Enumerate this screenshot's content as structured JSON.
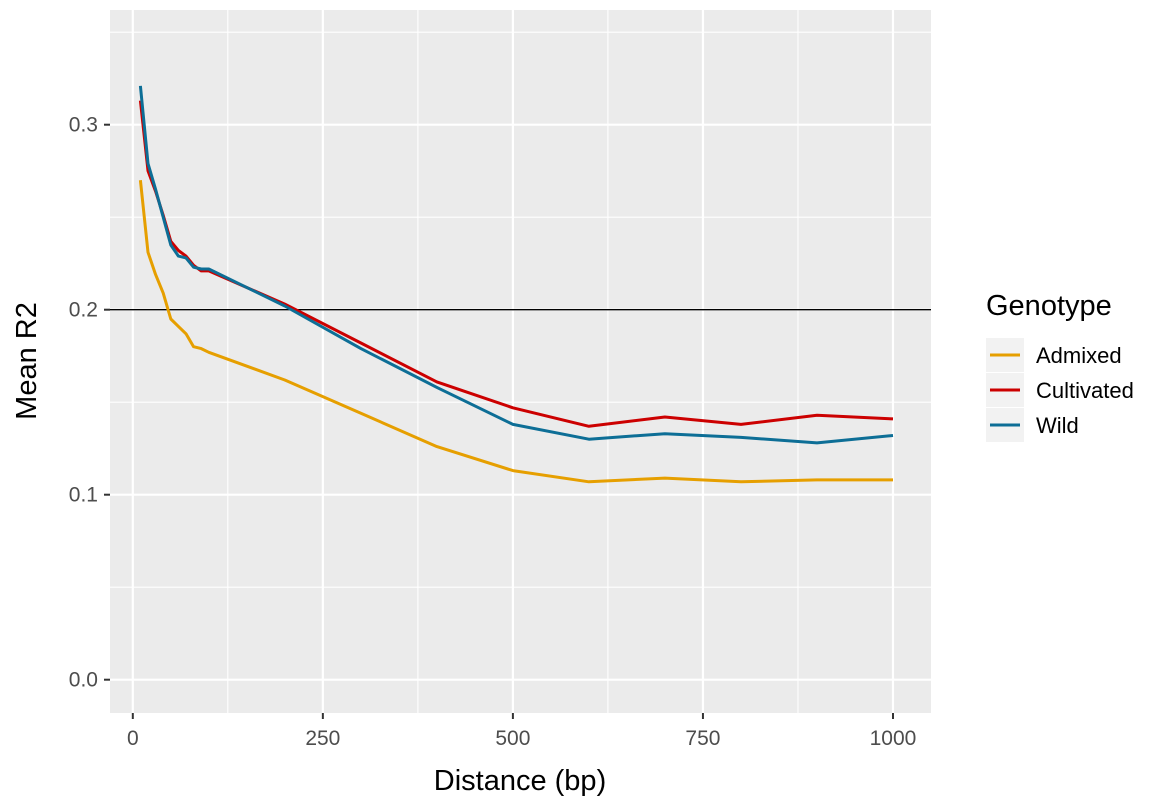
{
  "chart_data": {
    "type": "line",
    "xlabel": "Distance (bp)",
    "ylabel": "Mean R2",
    "xlim": [
      -30,
      1050
    ],
    "ylim": [
      -0.018,
      0.362
    ],
    "x_ticks": [
      0,
      250,
      500,
      750,
      1000
    ],
    "y_ticks": [
      0.0,
      0.1,
      0.2,
      0.3
    ],
    "x_tick_labels": [
      "0",
      "250",
      "500",
      "750",
      "1000"
    ],
    "y_tick_labels": [
      "0.0",
      "0.1",
      "0.2",
      "0.3"
    ],
    "grid": true,
    "hline": 0.2,
    "legend": {
      "title": "Genotype",
      "position": "right"
    },
    "series": [
      {
        "name": "Admixed",
        "color": "#E69F00",
        "x": [
          10,
          20,
          30,
          40,
          50,
          60,
          70,
          80,
          90,
          100,
          200,
          300,
          400,
          500,
          600,
          700,
          800,
          900,
          1000
        ],
        "y": [
          0.27,
          0.231,
          0.219,
          0.209,
          0.195,
          0.191,
          0.187,
          0.18,
          0.179,
          0.177,
          0.162,
          0.144,
          0.126,
          0.113,
          0.107,
          0.109,
          0.107,
          0.108,
          0.108
        ]
      },
      {
        "name": "Cultivated",
        "color": "#CC0000",
        "x": [
          10,
          20,
          30,
          40,
          50,
          60,
          70,
          80,
          90,
          100,
          200,
          300,
          400,
          500,
          600,
          700,
          800,
          900,
          1000
        ],
        "y": [
          0.313,
          0.275,
          0.264,
          0.251,
          0.237,
          0.232,
          0.229,
          0.224,
          0.221,
          0.221,
          0.203,
          0.182,
          0.161,
          0.147,
          0.137,
          0.142,
          0.138,
          0.143,
          0.141
        ]
      },
      {
        "name": "Wild",
        "color": "#0D6E96",
        "x": [
          10,
          20,
          30,
          40,
          50,
          60,
          70,
          80,
          90,
          100,
          200,
          300,
          400,
          500,
          600,
          700,
          800,
          900,
          1000
        ],
        "y": [
          0.321,
          0.279,
          0.265,
          0.25,
          0.235,
          0.229,
          0.228,
          0.223,
          0.222,
          0.222,
          0.202,
          0.179,
          0.158,
          0.138,
          0.13,
          0.133,
          0.131,
          0.128,
          0.132
        ]
      }
    ]
  }
}
